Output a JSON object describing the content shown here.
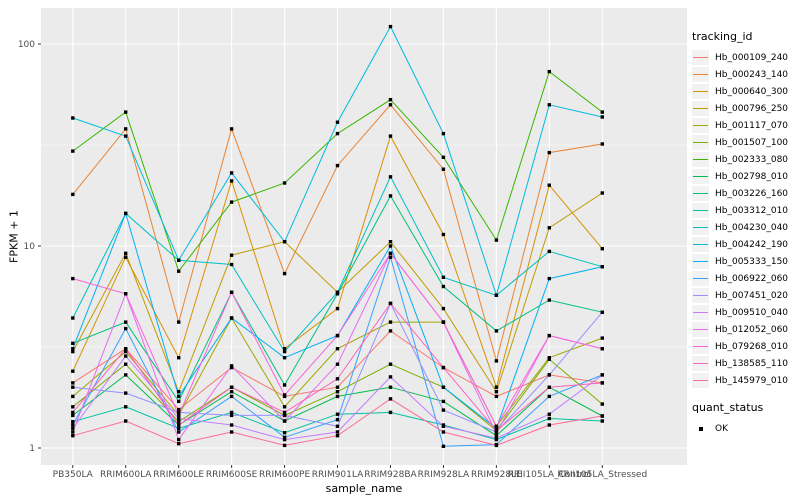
{
  "figure": {
    "x_axis_title": "sample_name",
    "y_axis_title": "FPKM + 1",
    "legend": {
      "tracking_title": "tracking_id",
      "quant_title": "quant_status",
      "quant_entries": [
        {
          "label": "OK",
          "shape": "filled-square",
          "color": "#000000"
        }
      ]
    }
  },
  "chart_data": {
    "type": "line",
    "title": "",
    "xlabel": "sample_name",
    "ylabel": "FPKM + 1",
    "y_scale": "log10",
    "ylim": [
      1,
      130
    ],
    "y_ticks": [
      1,
      10,
      100
    ],
    "y_tick_labels": [
      "1",
      "10",
      "100"
    ],
    "y_minor_ticks": [
      3.1623,
      31.623
    ],
    "grid": true,
    "panel_background": "#EBEBEB",
    "grid_color": "#FFFFFF",
    "tick_label_color": "#4D4D4D",
    "point_shape": "filled-square",
    "point_color": "#000000",
    "legend_position": "right",
    "categories": [
      "PB350LA",
      "RRIM600LA",
      "RRIM600LE",
      "RRIM600SE",
      "RRIM600PE",
      "RRIM901LA",
      "RRIM928BA",
      "RRIM928LA",
      "RRIM928LE",
      "RRII105LA_Control",
      "RRII105LA_Stressed"
    ],
    "series": [
      {
        "name": "Hb_000109_240",
        "color": "#F8766D",
        "values": [
          2.1,
          3.1,
          1.55,
          2.5,
          1.8,
          2.0,
          3.8,
          2.5,
          1.8,
          2.3,
          2.1
        ]
      },
      {
        "name": "Hb_000243_140",
        "color": "#EA8331",
        "values": [
          18,
          38,
          4.2,
          38,
          7.3,
          25,
          50,
          24,
          2.7,
          29,
          32
        ]
      },
      {
        "name": "Hb_000640_300",
        "color": "#D89000",
        "values": [
          2.4,
          8.8,
          2.8,
          21,
          3.1,
          4.9,
          35,
          11.4,
          2.0,
          20,
          9.7
        ]
      },
      {
        "name": "Hb_000796_250",
        "color": "#C09B00",
        "values": [
          3.0,
          9.2,
          1.9,
          9.0,
          10.5,
          5.9,
          10.5,
          4.9,
          1.9,
          12.3,
          18.3
        ]
      },
      {
        "name": "Hb_001117_070",
        "color": "#A3A500",
        "values": [
          1.8,
          3.0,
          1.45,
          4.4,
          1.6,
          3.1,
          4.2,
          4.2,
          1.28,
          2.8,
          3.5
        ]
      },
      {
        "name": "Hb_001507_100",
        "color": "#7CAE00",
        "values": [
          1.6,
          2.6,
          1.35,
          2.0,
          1.45,
          1.9,
          2.6,
          2.0,
          1.22,
          2.75,
          1.65
        ]
      },
      {
        "name": "Hb_002333_080",
        "color": "#39B600",
        "values": [
          29.5,
          46,
          7.5,
          16.5,
          20.5,
          36,
          53,
          27.5,
          10.7,
          73,
          46
        ]
      },
      {
        "name": "Hb_002798_010",
        "color": "#00BB4E",
        "values": [
          1.45,
          2.3,
          1.3,
          1.9,
          1.36,
          1.8,
          2.0,
          1.7,
          1.15,
          2.0,
          1.44
        ]
      },
      {
        "name": "Hb_003226_160",
        "color": "#00BF7D",
        "values": [
          3.3,
          4.2,
          1.7,
          5.9,
          2.05,
          5.8,
          17.7,
          6.3,
          3.8,
          5.4,
          4.7
        ]
      },
      {
        "name": "Hb_003312_010",
        "color": "#00C1A3",
        "values": [
          1.35,
          1.6,
          1.25,
          1.5,
          1.19,
          1.47,
          1.5,
          1.3,
          1.1,
          1.4,
          1.36
        ]
      },
      {
        "name": "Hb_004230_040",
        "color": "#00BFC4",
        "values": [
          4.4,
          14.5,
          8.5,
          8.1,
          3.0,
          5.9,
          22,
          7.0,
          5.7,
          9.4,
          7.9
        ]
      },
      {
        "name": "Hb_004242_190",
        "color": "#00BAE0",
        "values": [
          43,
          35,
          8.5,
          23,
          10.5,
          41,
          122,
          36,
          5.7,
          50,
          43.5
        ]
      },
      {
        "name": "Hb_005333_150",
        "color": "#00B0F6",
        "values": [
          3.1,
          14.5,
          1.8,
          4.4,
          2.8,
          3.6,
          10.0,
          2.0,
          1.25,
          6.9,
          7.9
        ]
      },
      {
        "name": "Hb_006922_060",
        "color": "#35A2FF",
        "values": [
          1.3,
          3.9,
          1.2,
          1.8,
          1.13,
          1.38,
          8.8,
          1.02,
          1.04,
          1.8,
          2.3
        ]
      },
      {
        "name": "Hb_007451_020",
        "color": "#9590FF",
        "values": [
          2.0,
          1.87,
          1.5,
          1.45,
          1.45,
          1.28,
          5.2,
          1.54,
          1.2,
          2.3,
          4.7
        ]
      },
      {
        "name": "Hb_009510_040",
        "color": "#C77CFF",
        "values": [
          1.25,
          2.85,
          1.4,
          1.3,
          1.1,
          1.2,
          2.25,
          1.28,
          1.12,
          1.47,
          2.3
        ]
      },
      {
        "name": "Hb_012052_060",
        "color": "#E76BF3",
        "values": [
          1.2,
          5.8,
          1.1,
          2.55,
          1.36,
          2.6,
          9.2,
          4.2,
          1.18,
          3.6,
          3.1
        ]
      },
      {
        "name": "Hb_079268_010",
        "color": "#FA62DB",
        "values": [
          6.9,
          5.8,
          1.45,
          5.9,
          1.83,
          3.6,
          9.2,
          4.2,
          1.28,
          3.6,
          3.1
        ]
      },
      {
        "name": "Hb_138585_110",
        "color": "#FF62BC",
        "values": [
          1.5,
          3.1,
          1.3,
          2.0,
          1.5,
          2.2,
          5.2,
          2.5,
          1.22,
          2.0,
          2.1
        ]
      },
      {
        "name": "Hb_145979_010",
        "color": "#FF6A98",
        "values": [
          1.15,
          1.36,
          1.05,
          1.2,
          1.03,
          1.15,
          1.75,
          1.2,
          1.03,
          1.3,
          1.44
        ]
      }
    ],
    "quant_status": {
      "title": "quant_status",
      "values": [
        "OK"
      ]
    }
  }
}
